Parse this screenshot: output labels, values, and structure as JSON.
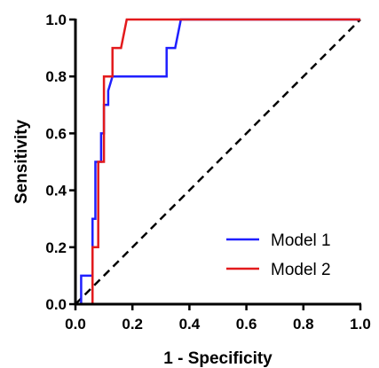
{
  "chart_data": {
    "type": "line",
    "title": "",
    "xlabel": "1 - Specificity",
    "ylabel": "Sensitivity",
    "xlim": [
      0,
      1
    ],
    "ylim": [
      0,
      1
    ],
    "xticks": [
      "0.0",
      "0.2",
      "0.4",
      "0.6",
      "0.8",
      "1.0"
    ],
    "yticks": [
      "0.0",
      "0.2",
      "0.4",
      "0.6",
      "0.8",
      "1.0"
    ],
    "grid": false,
    "legend_position": "bottom-right",
    "series": [
      {
        "name": "Model 1",
        "color": "#1f1fff",
        "points": [
          [
            0,
            0
          ],
          [
            0.02,
            0
          ],
          [
            0.02,
            0.1
          ],
          [
            0.06,
            0.1
          ],
          [
            0.06,
            0.3
          ],
          [
            0.07,
            0.3
          ],
          [
            0.07,
            0.5
          ],
          [
            0.09,
            0.5
          ],
          [
            0.09,
            0.6
          ],
          [
            0.1,
            0.6
          ],
          [
            0.1,
            0.7
          ],
          [
            0.115,
            0.7
          ],
          [
            0.115,
            0.75
          ],
          [
            0.13,
            0.8
          ],
          [
            0.32,
            0.8
          ],
          [
            0.32,
            0.9
          ],
          [
            0.35,
            0.9
          ],
          [
            0.37,
            1.0
          ],
          [
            1.0,
            1.0
          ]
        ]
      },
      {
        "name": "Model 2",
        "color": "#e31a1c",
        "points": [
          [
            0,
            0
          ],
          [
            0.06,
            0
          ],
          [
            0.06,
            0.2
          ],
          [
            0.08,
            0.2
          ],
          [
            0.08,
            0.5
          ],
          [
            0.1,
            0.5
          ],
          [
            0.1,
            0.8
          ],
          [
            0.13,
            0.8
          ],
          [
            0.13,
            0.9
          ],
          [
            0.16,
            0.9
          ],
          [
            0.18,
            1.0
          ],
          [
            1.0,
            1.0
          ]
        ]
      },
      {
        "name": "",
        "color": "#000000",
        "style": "dashed",
        "points": [
          [
            0,
            0
          ],
          [
            1,
            1
          ]
        ]
      }
    ]
  }
}
